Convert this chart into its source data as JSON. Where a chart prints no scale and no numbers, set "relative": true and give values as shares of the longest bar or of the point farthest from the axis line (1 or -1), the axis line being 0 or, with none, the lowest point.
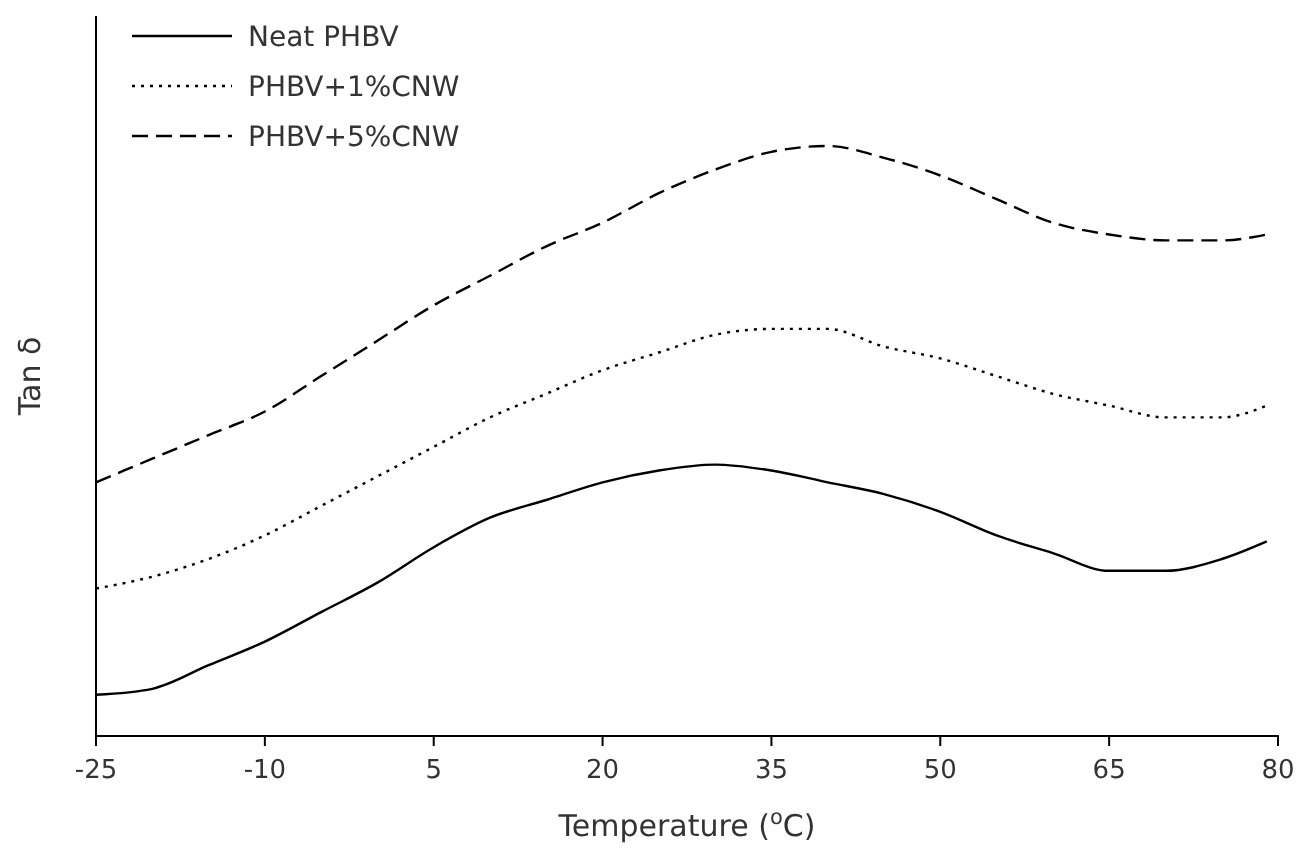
{
  "chart_data": {
    "type": "line",
    "xlabel": "Temperature ($^{o}$C)",
    "ylabel": "Tan δ",
    "relative": true,
    "tick_labels": "x",
    "legend": "top left",
    "marker": "none",
    "x": [
      -25,
      -20,
      -15,
      -10,
      -5,
      0,
      5,
      10,
      15,
      20,
      25,
      30,
      35,
      40,
      45,
      50,
      55,
      60,
      65,
      70,
      75,
      79
    ],
    "xlim": [
      -25,
      80
    ],
    "xticks": [
      -25,
      -10,
      5,
      20,
      35,
      50,
      65,
      80
    ],
    "series": [
      {
        "name": "Neat PHBV",
        "color": "#000000",
        "line_style": "solid",
        "values": [
          0.07,
          0.08,
          0.12,
          0.16,
          0.21,
          0.26,
          0.32,
          0.37,
          0.4,
          0.43,
          0.45,
          0.46,
          0.45,
          0.43,
          0.41,
          0.38,
          0.34,
          0.31,
          0.28,
          0.28,
          0.3,
          0.33
        ]
      },
      {
        "name": "PHBV+1%CNW",
        "color": "#000000",
        "line_style": "dotted",
        "values": [
          0.25,
          0.27,
          0.3,
          0.34,
          0.39,
          0.44,
          0.49,
          0.54,
          0.58,
          0.62,
          0.65,
          0.68,
          0.69,
          0.69,
          0.66,
          0.64,
          0.61,
          0.58,
          0.56,
          0.54,
          0.54,
          0.56
        ]
      },
      {
        "name": "PHBV+5%CNW",
        "color": "#000000",
        "line_style": "dashed",
        "values": [
          0.43,
          0.47,
          0.51,
          0.55,
          0.61,
          0.67,
          0.73,
          0.78,
          0.83,
          0.87,
          0.92,
          0.96,
          0.99,
          1.0,
          0.98,
          0.95,
          0.91,
          0.87,
          0.85,
          0.84,
          0.84,
          0.85
        ]
      }
    ]
  }
}
